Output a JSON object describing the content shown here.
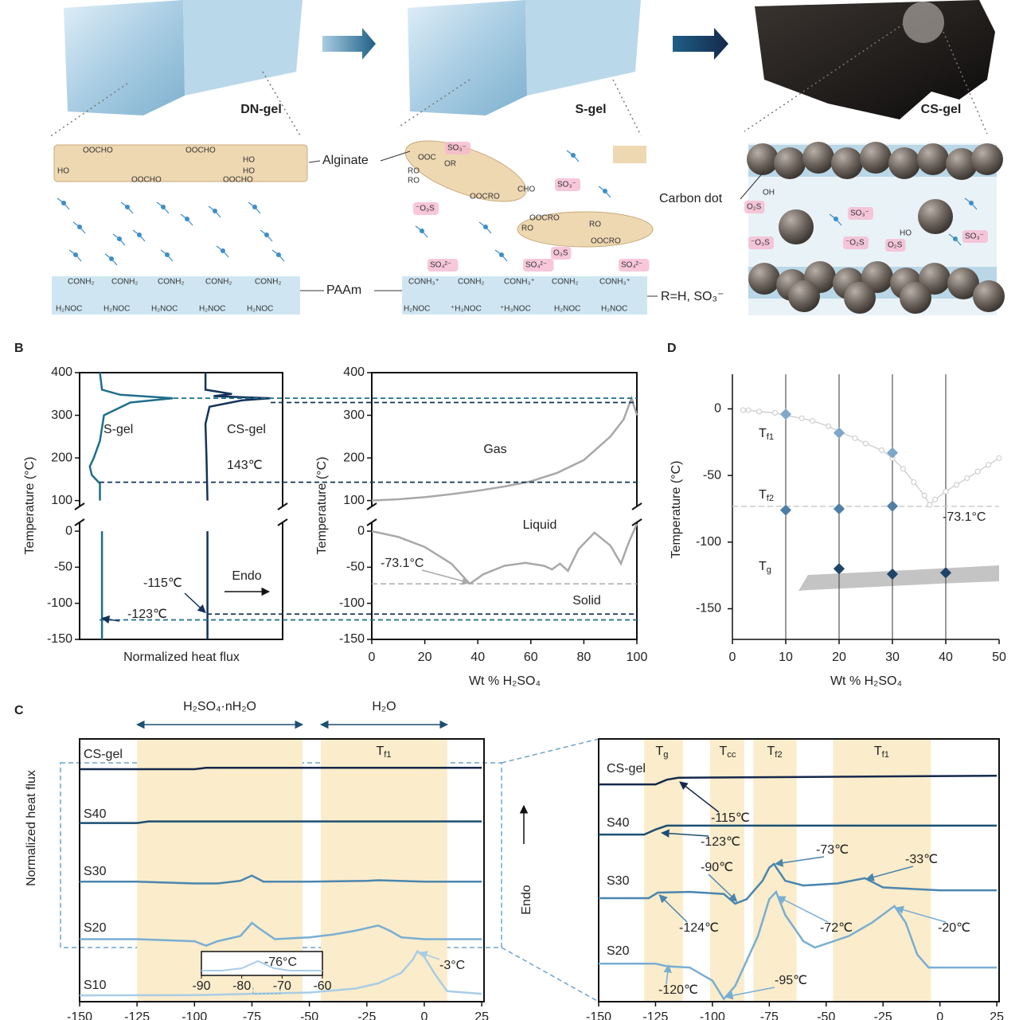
{
  "figure": {
    "panel_labels": [
      "B",
      "C",
      "D"
    ]
  },
  "panel_a": {
    "gel_labels": [
      "DN-gel",
      "S-gel",
      "CS-gel"
    ],
    "labels": {
      "alginate": "Alginate",
      "paam": "PAAm",
      "carbon_dot": "Carbon dot",
      "r_group": "R=H, SO₃⁻"
    },
    "fragments": [
      "OOCHO",
      "OOCHO",
      "HO",
      "OOCHO",
      "OOCHO",
      "HO",
      "HO",
      "CONH₂",
      "CONH₂",
      "CONH₂",
      "CONH₂",
      "CONH₂",
      "H₂NOC",
      "H₂NOC",
      "H₂NOC",
      "H₂NOC",
      "H₂NOC",
      "SO₃⁻",
      "OOC",
      "OR",
      "RO",
      "RO",
      "OOCRO",
      "CHO",
      "SO₃⁻",
      "⁻O₃S",
      "OOCRO",
      "RO",
      "RO",
      "OOCRO",
      "O₃S",
      "SO₄²⁻",
      "SO₄²⁻",
      "SO₄²⁻",
      "CONH₃⁺",
      "CONH₂",
      "CONH₃⁺",
      "CONH₂",
      "CONH₃⁺",
      "H₂NOC",
      "⁺H₃NOC",
      "⁺H₃NOC",
      "H₂NOC",
      "H₂NOC",
      "OH",
      "O₂S",
      "SO₃⁻",
      "⁻O₃S",
      "⁻O₂S",
      "O₂S",
      "HO",
      "SO₃⁻"
    ]
  },
  "chart_data": [
    {
      "type": "line",
      "xlabel": "Normalized heat flux",
      "ylabel": "Temperature (°C)",
      "xlim": [
        0,
        10
      ],
      "ylim_upper": [
        90,
        400
      ],
      "ylim_lower": [
        -150,
        10
      ],
      "yticks": [
        -150,
        -100,
        -50,
        0,
        100,
        200,
        300,
        400
      ],
      "series": [
        {
          "name": "S-gel",
          "color": "#1f6f8b",
          "flux": [
            1.1,
            1.1,
            1.1,
            1.0,
            1.0,
            0.6,
            0.5,
            0.7,
            1.0,
            1.2,
            2.5,
            4.6,
            2.0,
            1.1,
            1.0
          ],
          "temperature": [
            -150,
            -123,
            0,
            100,
            140,
            160,
            180,
            200,
            240,
            300,
            330,
            340,
            348,
            360,
            400
          ]
        },
        {
          "name": "CS-gel",
          "color": "#14335a",
          "flux": [
            6.3,
            6.3,
            6.3,
            6.3,
            6.25,
            6.2,
            6.4,
            8.0,
            9.4,
            6.6,
            7.5,
            6.2,
            6.2
          ],
          "temperature": [
            -150,
            -115,
            0,
            100,
            200,
            280,
            320,
            335,
            340,
            345,
            350,
            360,
            400
          ]
        }
      ],
      "reference_lines": [
        340,
        330,
        143,
        -115,
        -123
      ],
      "annotations": [
        {
          "label": "143℃",
          "value": 143
        },
        {
          "label": "-115℃",
          "value": -115
        },
        {
          "label": "-123℃",
          "value": -123
        }
      ],
      "endo_label": "Endo"
    },
    {
      "type": "line",
      "xlabel": "Wt % H₂SO₄",
      "ylabel": "Temperature (°C)",
      "xlim": [
        0,
        100
      ],
      "xticks": [
        0,
        20,
        40,
        60,
        80,
        100
      ],
      "ylim_upper": [
        90,
        400
      ],
      "ylim_lower": [
        -150,
        10
      ],
      "yticks": [
        -150,
        -100,
        -50,
        0,
        100,
        200,
        300,
        400
      ],
      "series": [
        {
          "color": "#a8a8a8",
          "x": [
            0,
            10,
            20,
            30,
            40,
            50,
            60,
            70,
            80,
            90,
            95,
            98,
            100
          ],
          "y": [
            100,
            103,
            108,
            115,
            123,
            133,
            145,
            165,
            195,
            250,
            290,
            340,
            300
          ]
        },
        {
          "color": "#a8a8a8",
          "x": [
            0,
            10,
            20,
            30,
            37
          ],
          "y": [
            0,
            -8,
            -22,
            -45,
            -73
          ]
        },
        {
          "color": "#a8a8a8",
          "x": [
            37,
            42,
            50,
            58,
            65,
            68,
            71,
            74,
            78,
            84,
            90,
            94,
            97,
            100
          ],
          "y": [
            -73,
            -60,
            -48,
            -44,
            -48,
            -53,
            -45,
            -55,
            -25,
            -2,
            -20,
            -45,
            -15,
            10
          ]
        }
      ],
      "region_labels": [
        "Gas",
        "Liquid",
        "Solid"
      ],
      "annotation": {
        "label": "-73.1°C",
        "value": -73.1
      }
    },
    {
      "type": "scatter",
      "xlabel": "Wt % H₂SO₄",
      "ylabel": "Temperature (°C)",
      "xlim": [
        0,
        50
      ],
      "ylim": [
        -173,
        26
      ],
      "xticks": [
        0,
        10,
        20,
        30,
        40,
        50
      ],
      "yticks": [
        -150,
        -100,
        -50,
        0
      ],
      "series": [
        {
          "name": {
            "text": "T",
            "sub": "f1"
          },
          "color": "#7fa7c9",
          "x": [
            10,
            20,
            30
          ],
          "values": [
            -4,
            -18,
            -33
          ]
        },
        {
          "name": {
            "text": "T",
            "sub": "f2"
          },
          "color": "#4f7fa6",
          "x": [
            10,
            20,
            30
          ],
          "values": [
            -76,
            -75,
            -73
          ]
        },
        {
          "name": {
            "text": "T",
            "sub": "g"
          },
          "color": "#1f4566",
          "x": [
            20,
            30,
            40
          ],
          "values": [
            -120,
            -124,
            -123
          ]
        }
      ],
      "reference": {
        "color": "#c8c8c8",
        "x": [
          2,
          3,
          5,
          8,
          10,
          13,
          15,
          18,
          20,
          23,
          25,
          28,
          30,
          32,
          34,
          36,
          37,
          38,
          40,
          42,
          44,
          46,
          48,
          50
        ],
        "values": [
          -1,
          -1,
          -2,
          -3,
          -5,
          -7,
          -9,
          -13,
          -17,
          -22,
          -26,
          -31,
          -37,
          -45,
          -55,
          -65,
          -72,
          -68,
          -62,
          -57,
          -52,
          -47,
          -42,
          -37
        ]
      },
      "annotation": {
        "label": "-73.1°C",
        "value": -73.1
      }
    },
    {
      "type": "line",
      "ylabel": "Normalized heat flux",
      "xlim": [
        -150,
        26
      ],
      "ylim": [
        0,
        10
      ],
      "xticks": [
        -150,
        -125,
        -100,
        -75,
        -50,
        -25,
        0,
        25
      ],
      "series": [
        {
          "name": "CS-gel",
          "color": "#14284b",
          "x": [
            -150,
            -100,
            -95,
            25
          ],
          "values": [
            8.85,
            8.85,
            8.9,
            8.9
          ]
        },
        {
          "name": "S40",
          "color": "#1c4f72",
          "x": [
            -150,
            -125,
            -120,
            25
          ],
          "values": [
            6.8,
            6.8,
            6.86,
            6.86
          ]
        },
        {
          "name": "S30",
          "color": "#4a86ae",
          "x": [
            -150,
            -125,
            -100,
            -90,
            -80,
            -75,
            -70,
            -50,
            -25,
            -20,
            0,
            25
          ],
          "values": [
            4.57,
            4.57,
            4.5,
            4.5,
            4.6,
            4.8,
            4.57,
            4.57,
            4.6,
            4.62,
            4.57,
            4.57
          ]
        },
        {
          "name": "S20",
          "color": "#79aed3",
          "x": [
            -150,
            -125,
            -100,
            -95,
            -90,
            -80,
            -75,
            -72,
            -65,
            -50,
            -40,
            -30,
            -20,
            -15,
            -10,
            0,
            25
          ],
          "values": [
            2.38,
            2.38,
            2.3,
            2.13,
            2.3,
            2.5,
            3.0,
            2.8,
            2.38,
            2.45,
            2.55,
            2.7,
            2.9,
            2.7,
            2.45,
            2.38,
            2.38
          ]
        },
        {
          "name": "S10",
          "color": "#a9cde6",
          "x": [
            -150,
            -100,
            -75,
            -50,
            -30,
            -20,
            -10,
            -5,
            -3,
            0,
            5,
            10,
            25
          ],
          "values": [
            0.24,
            0.25,
            0.3,
            0.35,
            0.5,
            0.7,
            1.1,
            1.6,
            1.92,
            1.7,
            1.0,
            0.4,
            0.3
          ]
        }
      ],
      "bands": [
        {
          "label": "H₂SO₄·nH₂O",
          "range": [
            -125,
            -53
          ]
        },
        {
          "label": "H₂O",
          "range": [
            -45,
            10
          ],
          "inner_label": {
            "text": "T",
            "sub": "f1"
          }
        }
      ],
      "annotation": {
        "label": "-3°C",
        "value": -3
      },
      "inset": {
        "xlim": [
          -90,
          -60
        ],
        "xticks": [
          -90,
          -80,
          -70,
          -60
        ],
        "ylim": [
          0,
          10
        ],
        "x": [
          -90,
          -85,
          -80,
          -76,
          -72,
          -68,
          -60
        ],
        "values": [
          2,
          2,
          3,
          6,
          3,
          2,
          2
        ],
        "annotation": {
          "label": "-76°C",
          "value": -76
        }
      }
    },
    {
      "type": "line",
      "ylabel": "Endo",
      "xlim": [
        -150,
        26
      ],
      "ylim": [
        0,
        10
      ],
      "xticks": [
        -150,
        -125,
        -100,
        -75,
        -50,
        -25,
        0,
        25
      ],
      "series": [
        {
          "name": "CS-gel",
          "color": "#14284b",
          "x": [
            -150,
            -125,
            -120,
            -115,
            25
          ],
          "values": [
            8.27,
            8.27,
            8.45,
            8.52,
            8.6
          ]
        },
        {
          "name": "S40",
          "color": "#1c4f72",
          "x": [
            -150,
            -130,
            -125,
            -120,
            25
          ],
          "values": [
            6.36,
            6.36,
            6.55,
            6.7,
            6.7
          ]
        },
        {
          "name": "S30",
          "color": "#4a86ae",
          "x": [
            -150,
            -128,
            -124,
            -110,
            -95,
            -90,
            -85,
            -78,
            -75,
            -73,
            -68,
            -60,
            -45,
            -33,
            -25,
            0,
            25
          ],
          "values": [
            3.94,
            3.94,
            4.15,
            4.18,
            4.1,
            3.73,
            3.9,
            4.6,
            5.1,
            5.24,
            4.6,
            4.42,
            4.5,
            4.7,
            4.35,
            4.24,
            4.24
          ]
        },
        {
          "name": "S20",
          "color": "#79aed3",
          "x": [
            -150,
            -125,
            -120,
            -110,
            -100,
            -95,
            -90,
            -80,
            -75,
            -72,
            -68,
            -60,
            -55,
            -40,
            -30,
            -20,
            -15,
            -10,
            -5,
            25
          ],
          "values": [
            1.45,
            1.45,
            1.35,
            1.3,
            0.8,
            0.1,
            0.6,
            2.5,
            3.9,
            4.18,
            3.3,
            2.3,
            2.06,
            2.5,
            3.0,
            3.64,
            3.0,
            1.8,
            1.3,
            1.3
          ]
        }
      ],
      "bands": [
        {
          "label": {
            "text": "T",
            "sub": "g"
          },
          "range": [
            -130,
            -113
          ]
        },
        {
          "label": {
            "text": "T",
            "sub": "cc"
          },
          "range": [
            -101,
            -86
          ]
        },
        {
          "label": {
            "text": "T",
            "sub": "f2"
          },
          "range": [
            -82,
            -63
          ]
        },
        {
          "label": {
            "text": "T",
            "sub": "f1"
          },
          "range": [
            -47,
            -4
          ]
        }
      ],
      "annotations": [
        {
          "label": "-115℃",
          "value": -115
        },
        {
          "label": "-123℃",
          "value": -123
        },
        {
          "label": "-90℃",
          "value": -90
        },
        {
          "label": "-73℃",
          "value": -73
        },
        {
          "label": "-33℃",
          "value": -33
        },
        {
          "label": "-124℃",
          "value": -124
        },
        {
          "label": "-72℃",
          "value": -72
        },
        {
          "label": "-20℃",
          "value": -20
        },
        {
          "label": "-120℃",
          "value": -120
        },
        {
          "label": "-95℃",
          "value": -95
        }
      ]
    }
  ]
}
